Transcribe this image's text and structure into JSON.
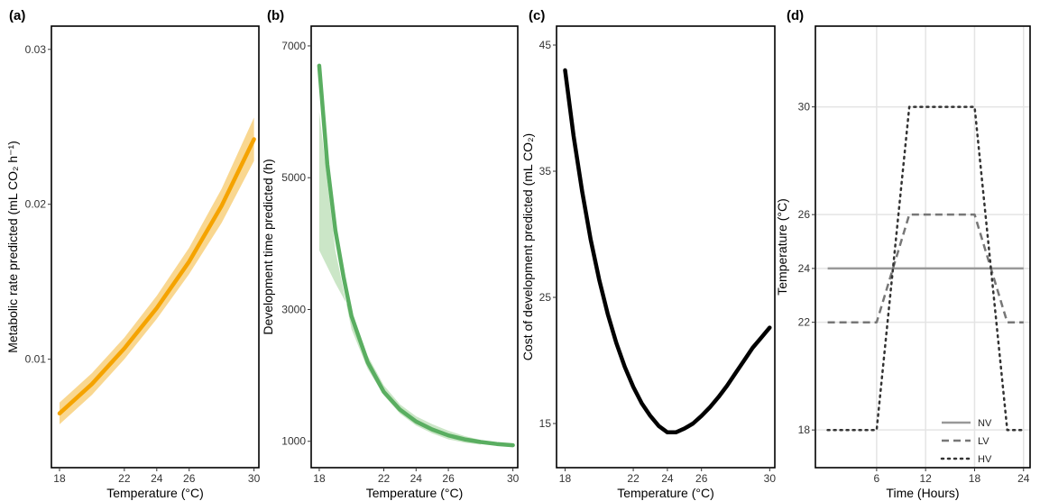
{
  "figure": {
    "background": "#ffffff"
  },
  "chart_data": [
    {
      "panel": "(a)",
      "type": "line",
      "title": "",
      "xlabel": "Temperature (°C)",
      "ylabel": "Metabolic rate predicted (mL CO₂ h⁻¹)",
      "xlim": [
        17.5,
        30.3
      ],
      "ylim": [
        0.003,
        0.0315
      ],
      "xticks": [
        18,
        22,
        24,
        26,
        30
      ],
      "yticks": [
        0.01,
        0.02,
        0.03
      ],
      "yticklabels": [
        "0.01",
        "0.02",
        "0.03"
      ],
      "line_color": "#F5A300",
      "band_color": "#F7C96B",
      "series": [
        {
          "name": "predicted",
          "x": [
            18,
            20,
            22,
            24,
            26,
            28,
            30
          ],
          "y": [
            0.0065,
            0.0084,
            0.0107,
            0.0133,
            0.0163,
            0.0199,
            0.0242
          ]
        },
        {
          "name": "ci_lower",
          "x": [
            18,
            20,
            22,
            24,
            26,
            28,
            30
          ],
          "y": [
            0.0058,
            0.0077,
            0.01,
            0.0126,
            0.0155,
            0.0188,
            0.0228
          ]
        },
        {
          "name": "ci_upper",
          "x": [
            18,
            20,
            22,
            24,
            26,
            28,
            30
          ],
          "y": [
            0.0072,
            0.0091,
            0.0114,
            0.0141,
            0.0172,
            0.021,
            0.0256
          ]
        }
      ]
    },
    {
      "panel": "(b)",
      "type": "line",
      "title": "",
      "xlabel": "Temperature (°C)",
      "ylabel": "Development time predicted (h)",
      "xlim": [
        17.5,
        30.3
      ],
      "ylim": [
        600,
        7300
      ],
      "xticks": [
        18,
        22,
        24,
        26,
        30
      ],
      "yticks": [
        1000,
        3000,
        5000,
        7000
      ],
      "yticklabels": [
        "1000",
        "3000",
        "5000",
        "7000"
      ],
      "line_color": "#5AAE61",
      "band_color": "#B9DDB4",
      "series": [
        {
          "name": "predicted",
          "x": [
            18,
            18.5,
            19,
            19.5,
            20,
            21,
            22,
            23,
            24,
            25,
            26,
            27,
            28,
            29,
            30
          ],
          "y": [
            6700,
            5200,
            4200,
            3500,
            2900,
            2200,
            1750,
            1480,
            1300,
            1180,
            1090,
            1030,
            990,
            960,
            940
          ]
        },
        {
          "name": "ci_lower",
          "x": [
            18,
            19,
            20,
            21,
            22,
            23,
            24,
            25,
            26,
            27,
            28
          ],
          "y": [
            6000,
            3900,
            2700,
            2100,
            1700,
            1420,
            1240,
            1120,
            1030,
            980,
            950
          ]
        },
        {
          "name": "ci_upper",
          "x": [
            18,
            19,
            20,
            21,
            22,
            23,
            24,
            25,
            26,
            27,
            28
          ],
          "y": [
            3900,
            3400,
            2950,
            2300,
            1850,
            1560,
            1380,
            1260,
            1160,
            1080,
            1020
          ]
        }
      ]
    },
    {
      "panel": "(c)",
      "type": "line",
      "title": "",
      "xlabel": "Temperature (°C)",
      "ylabel": "Cost of development predicted (mL CO₂)",
      "xlim": [
        17.5,
        30.3
      ],
      "ylim": [
        11.5,
        46.5
      ],
      "xticks": [
        18,
        22,
        24,
        26,
        30
      ],
      "yticks": [
        15,
        25,
        35,
        45
      ],
      "yticklabels": [
        "15",
        "25",
        "35",
        "45"
      ],
      "line_color": "#000000",
      "series": [
        {
          "name": "predicted",
          "x": [
            18,
            18.5,
            19,
            19.5,
            20,
            20.5,
            21,
            21.5,
            22,
            22.5,
            23,
            23.5,
            24,
            24.5,
            25,
            25.5,
            26,
            26.5,
            27,
            27.5,
            28,
            28.5,
            29,
            29.5,
            30
          ],
          "y": [
            43.0,
            37.8,
            33.4,
            29.6,
            26.4,
            23.7,
            21.4,
            19.5,
            17.9,
            16.6,
            15.6,
            14.8,
            14.3,
            14.3,
            14.6,
            15.0,
            15.6,
            16.3,
            17.1,
            18.0,
            19.0,
            20.0,
            21.0,
            21.8,
            22.6
          ]
        }
      ]
    },
    {
      "panel": "(d)",
      "type": "line",
      "title": "",
      "xlabel": "Time (Hours)",
      "ylabel": "Temperature (°C)",
      "xlim": [
        -1.5,
        24.8
      ],
      "ylim": [
        16.6,
        33.0
      ],
      "xticks": [
        6,
        12,
        18,
        24
      ],
      "yticks": [
        18,
        22,
        24,
        26,
        30
      ],
      "yticklabels": [
        "18",
        "22",
        "24",
        "26",
        "30"
      ],
      "grid": true,
      "legend_position": "bottom-right",
      "series": [
        {
          "name": "NV",
          "color": "#999999",
          "dash": "solid",
          "x": [
            0,
            24
          ],
          "y": [
            24,
            24
          ]
        },
        {
          "name": "LV",
          "color": "#777777",
          "dash": "dashed",
          "x": [
            0,
            6,
            10,
            18,
            22,
            24
          ],
          "y": [
            22,
            22,
            26,
            26,
            22,
            22
          ]
        },
        {
          "name": "HV",
          "color": "#333333",
          "dash": "dotted",
          "x": [
            0,
            6,
            10,
            18,
            22,
            24
          ],
          "y": [
            18,
            18,
            30,
            30,
            18,
            18
          ]
        }
      ]
    }
  ]
}
